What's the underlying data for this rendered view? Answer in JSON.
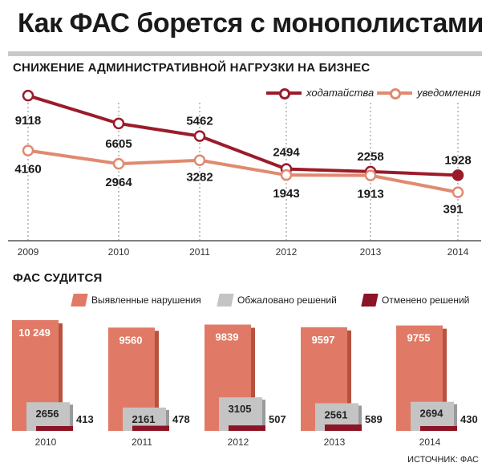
{
  "header": {
    "title": "Как ФАС борется с монополистами"
  },
  "colors": {
    "petitions": "#9b1b2a",
    "notifications": "#e08a70",
    "violations": "#e07a66",
    "appealed": "#c4c4c4",
    "cancelled": "#8b1426"
  },
  "chart_data": [
    {
      "type": "line",
      "title": "СНИЖЕНИЕ АДМИНИСТРАТИВНОЙ НАГРУЗКИ НА БИЗНЕС",
      "categories": [
        "2009",
        "2010",
        "2011",
        "2012",
        "2013",
        "2014"
      ],
      "series": [
        {
          "name": "ходатайства",
          "values": [
            9118,
            6605,
            5462,
            2494,
            2258,
            1928
          ]
        },
        {
          "name": "уведомления",
          "values": [
            4160,
            2964,
            3282,
            1943,
            1913,
            391
          ]
        }
      ],
      "grid": false,
      "legend": "top-right"
    },
    {
      "type": "bar",
      "title": "ФАС СУДИТСЯ",
      "categories": [
        "2010",
        "2011",
        "2012",
        "2013",
        "2014"
      ],
      "series": [
        {
          "name": "Выявленные нарушения",
          "values": [
            10249,
            9560,
            9839,
            9597,
            9755
          ],
          "labels": [
            "10 249",
            "9560",
            "9839",
            "9597",
            "9755"
          ]
        },
        {
          "name": "Обжаловано решений",
          "values": [
            2656,
            2161,
            3105,
            2561,
            2694
          ],
          "labels": [
            "2656",
            "2161",
            "3105",
            "2561",
            "2694"
          ]
        },
        {
          "name": "Отменено решений",
          "values": [
            413,
            478,
            507,
            589,
            430
          ],
          "labels": [
            "413",
            "478",
            "507",
            "589",
            "430"
          ]
        }
      ],
      "legend": "top"
    }
  ],
  "footer": {
    "source": "ИСТОЧНИК: ФАС"
  }
}
